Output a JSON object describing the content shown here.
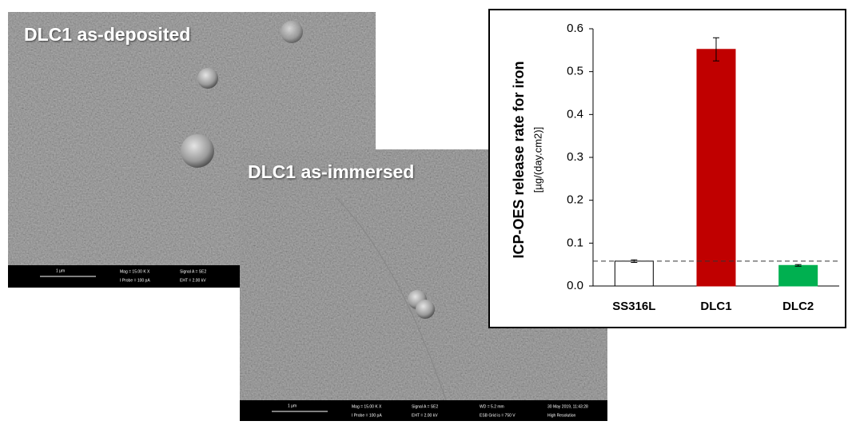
{
  "panels": [
    {
      "title": "DLC1 as-deposited",
      "info": [
        "1 µm",
        "Mag = 15.00 K X",
        "I Probe = 100 pA",
        "Signal A = SE2",
        "EHT = 2.00 kV"
      ]
    },
    {
      "title": "DLC1 as-immersed",
      "info": [
        "1 µm",
        "Mag = 15.00 K X",
        "I Probe = 100 pA",
        "Signal A = SE2",
        "EHT = 2.00 kV",
        "WD = 5.2 mm",
        "ESB Grid is = 750 V",
        "30 May 2019, 11:43:28",
        "High Resolution"
      ]
    }
  ],
  "chart_data": {
    "type": "bar",
    "y_label": "ICP-OES release rate for iron",
    "y_sublabel": "[µg/(day.cm2)]",
    "categories": [
      "SS316L",
      "DLC1",
      "DLC2"
    ],
    "values": [
      0.058,
      0.552,
      0.048
    ],
    "errors": [
      0.003,
      0.027,
      0.002
    ],
    "colors": [
      "#ffffff",
      "#c00000",
      "#00b050"
    ],
    "reference_line": 0.058,
    "ylim": [
      0,
      0.6
    ],
    "yticks": [
      {
        "value": 0,
        "label": "0.0"
      },
      0.1,
      0.2,
      0.3,
      0.4,
      0.5,
      0.6
    ]
  }
}
